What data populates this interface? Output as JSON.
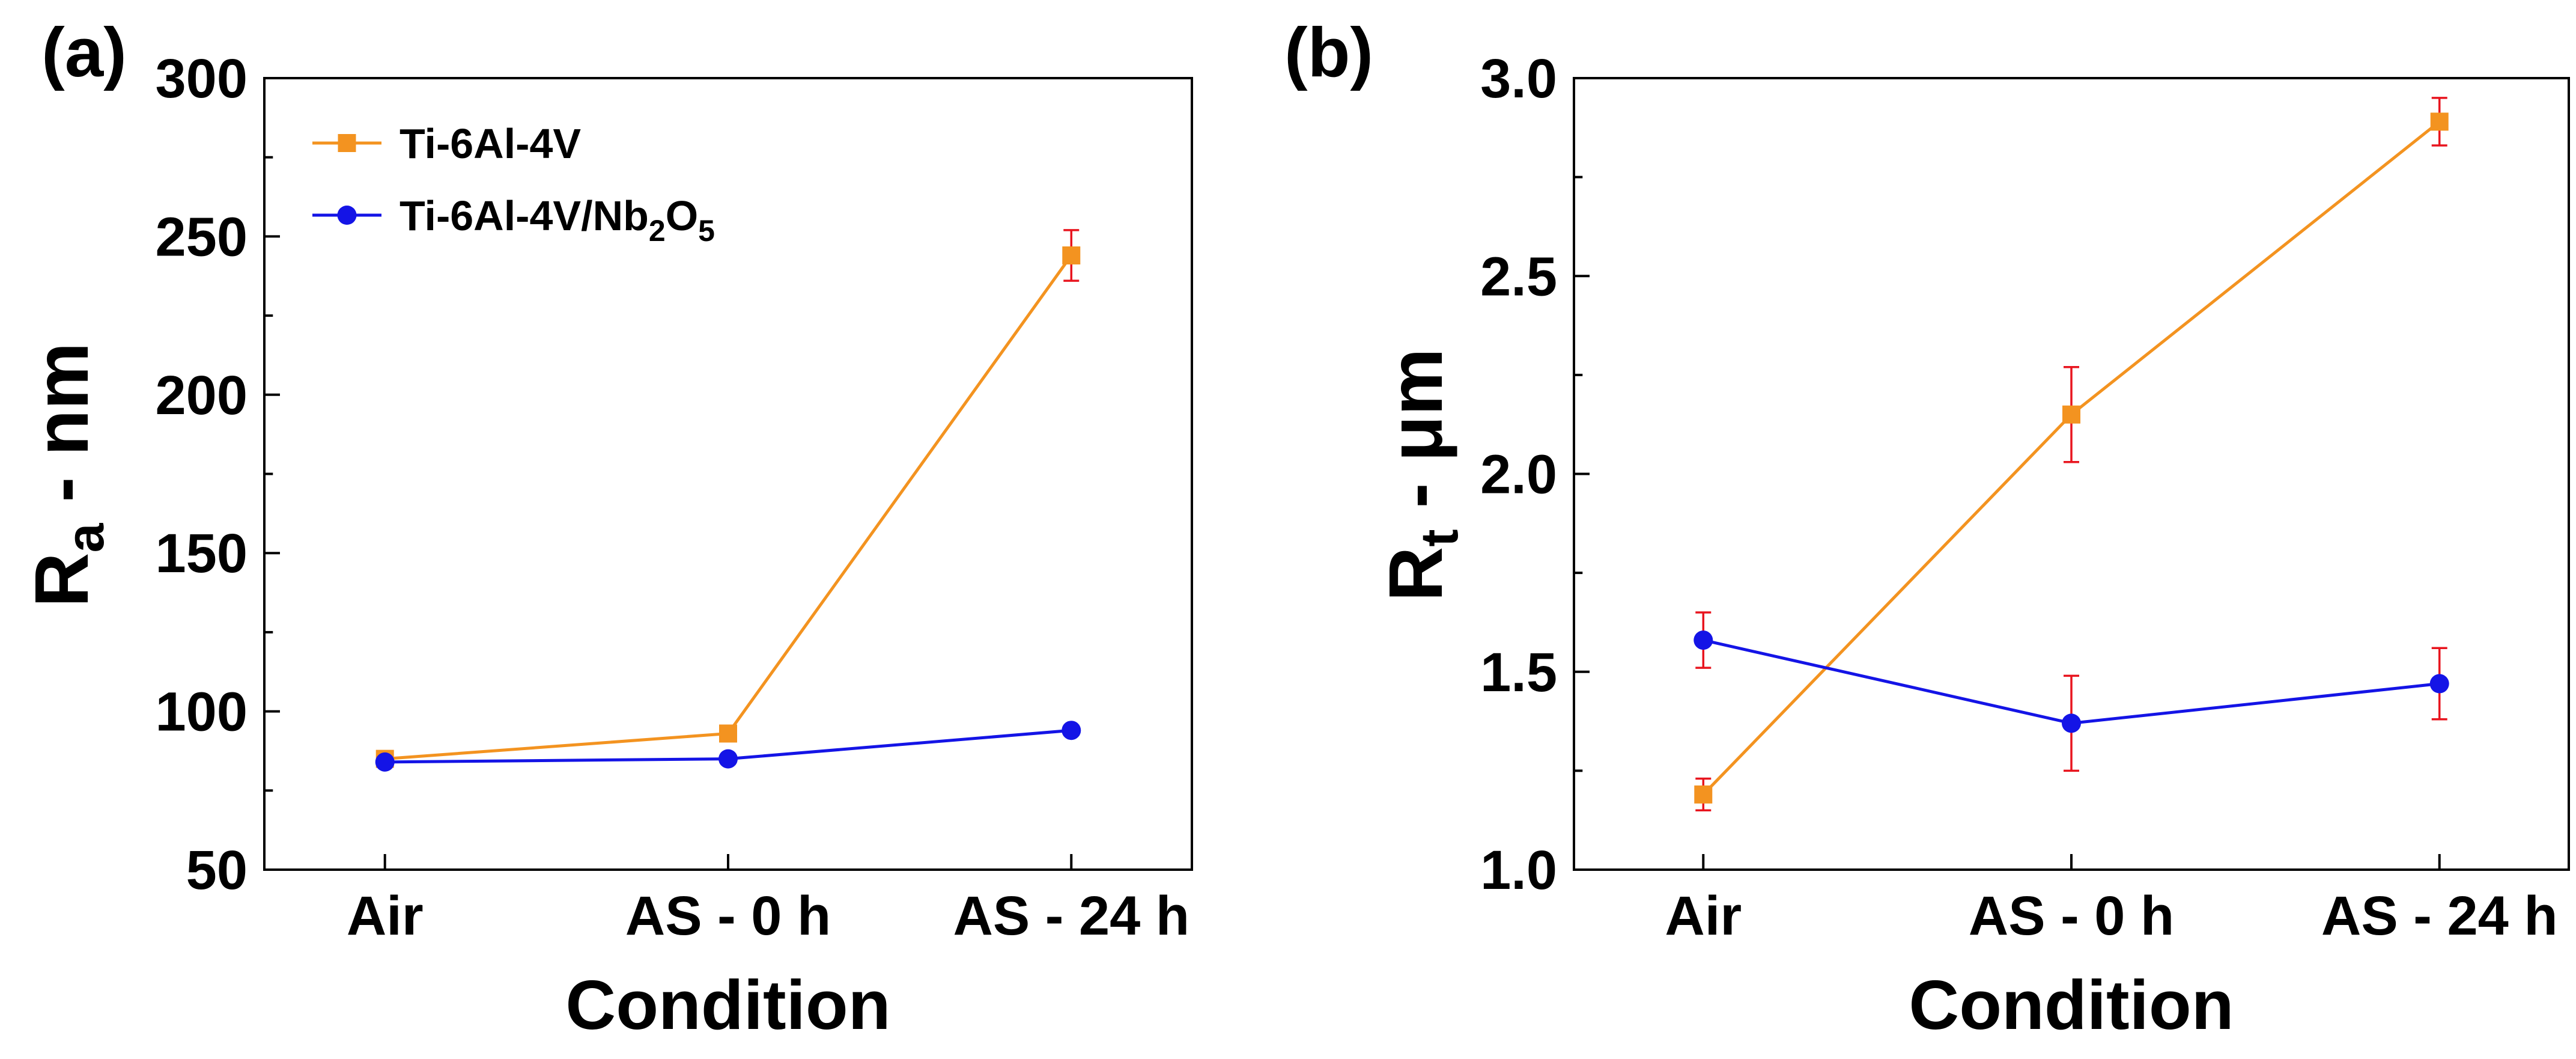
{
  "chart_data": [
    {
      "type": "line",
      "panel_label": "(a)",
      "title": "",
      "xlabel": "Condition",
      "ylabel": {
        "main": "R",
        "sub": "a",
        "rest": " - nm"
      },
      "categories": [
        "Air",
        "AS - 0 h",
        "AS - 24 h"
      ],
      "ylim": [
        50,
        300
      ],
      "yticks": [
        50,
        100,
        150,
        200,
        250,
        300
      ],
      "series": [
        {
          "name": "Ti-6Al-4V",
          "color": "#f39320",
          "marker": "square",
          "values": [
            85,
            93,
            244
          ],
          "errors": [
            1.5,
            2,
            8
          ]
        },
        {
          "name": "Ti-6Al-4V/Nb2O5",
          "color": "#1414e6",
          "marker": "circle",
          "values": [
            84,
            85,
            94
          ],
          "errors": [
            1.5,
            1.5,
            1.5
          ]
        }
      ],
      "legend": {
        "position": "top-left",
        "entries": [
          {
            "parts": [
              {
                "t": "Ti-6Al-4V"
              }
            ]
          },
          {
            "parts": [
              {
                "t": "Ti-6Al-4V/Nb"
              },
              {
                "t": "2",
                "sub": true
              },
              {
                "t": "O"
              },
              {
                "t": "5",
                "sub": true
              }
            ]
          }
        ]
      },
      "grid": false
    },
    {
      "type": "line",
      "panel_label": "(b)",
      "title": "",
      "xlabel": "Condition",
      "ylabel": {
        "main": "R",
        "sub": "t",
        "rest": " - μm"
      },
      "categories": [
        "Air",
        "AS - 0 h",
        "AS - 24 h"
      ],
      "ylim": [
        1.0,
        3.0
      ],
      "yticks": [
        1.0,
        1.5,
        2.0,
        2.5,
        3.0
      ],
      "yticklabels": [
        "1.0",
        "1.5",
        "2.0",
        "2.5",
        "3.0"
      ],
      "series": [
        {
          "name": "Ti-6Al-4V",
          "color": "#f39320",
          "marker": "square",
          "values": [
            1.19,
            2.15,
            2.89
          ],
          "errors": [
            0.04,
            0.12,
            0.06
          ]
        },
        {
          "name": "Ti-6Al-4V/Nb2O5",
          "color": "#1414e6",
          "marker": "circle",
          "values": [
            1.58,
            1.37,
            1.47
          ],
          "errors": [
            0.07,
            0.12,
            0.09
          ]
        }
      ],
      "grid": false
    }
  ]
}
